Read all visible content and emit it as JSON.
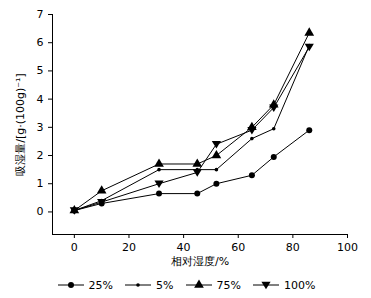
{
  "chart_data": {
    "type": "line",
    "x_label": "相对湿度/%",
    "y_label": "吸湿量/[g·(100g)⁻¹]",
    "x": [
      0,
      10,
      31,
      45,
      52,
      65,
      73,
      86
    ],
    "series": [
      {
        "name": "25%",
        "color": "#000000",
        "marker": "circle",
        "values": [
          0.05,
          0.3,
          0.65,
          0.65,
          1.0,
          1.3,
          1.95,
          2.9
        ]
      },
      {
        "name": "5%",
        "color": "#000000",
        "marker": "dot",
        "values": [
          0.05,
          0.4,
          1.5,
          1.5,
          1.5,
          2.6,
          2.95,
          5.9
        ]
      },
      {
        "name": "75%",
        "color": "#000000",
        "marker": "triangle",
        "values": [
          0.05,
          0.75,
          1.7,
          1.7,
          2.0,
          3.0,
          3.8,
          6.35
        ]
      },
      {
        "name": "100%",
        "color": "#000000",
        "marker": "triangle-down",
        "values": [
          0.05,
          0.35,
          1.0,
          1.4,
          2.4,
          2.9,
          3.7,
          5.85
        ]
      }
    ],
    "xlim": [
      -8,
      100
    ],
    "xticks": [
      0,
      20,
      40,
      60,
      80,
      100
    ],
    "ylim": [
      -0.8,
      7
    ],
    "yticks": [
      0,
      1,
      2,
      3,
      4,
      5,
      6,
      7
    ],
    "grid": false,
    "legend": "bottom"
  }
}
